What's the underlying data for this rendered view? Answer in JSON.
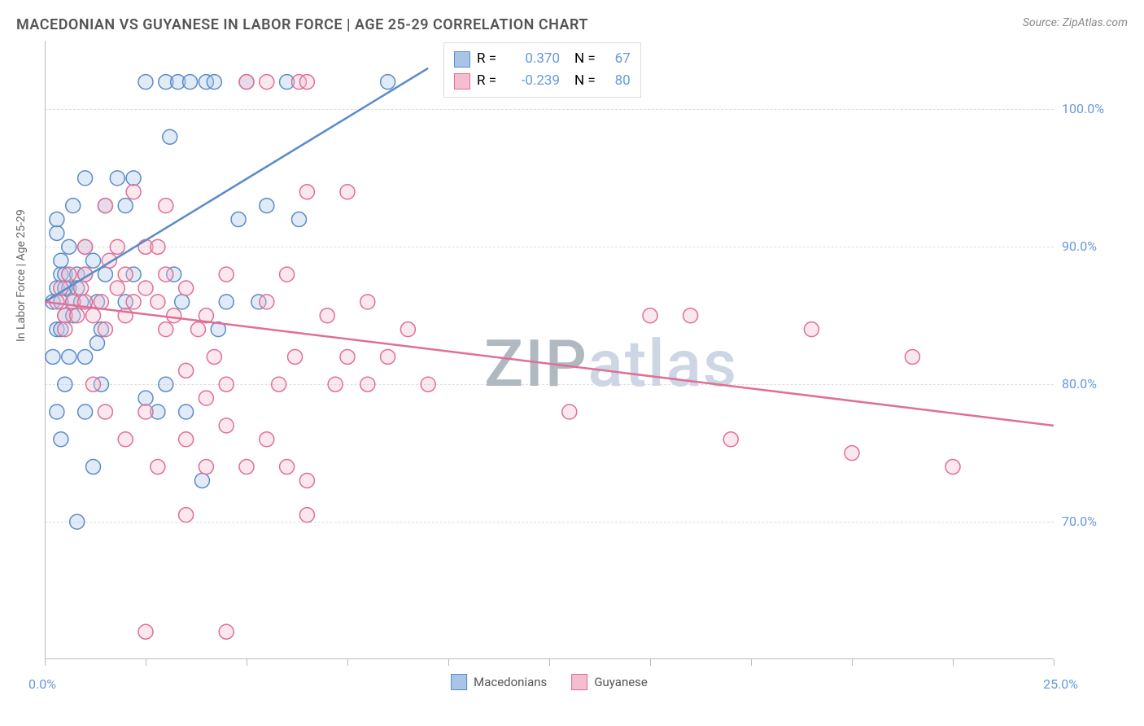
{
  "title": "MACEDONIAN VS GUYANESE IN LABOR FORCE | AGE 25-29 CORRELATION CHART",
  "source": "Source: ZipAtlas.com",
  "ylabel": "In Labor Force | Age 25-29",
  "watermark_text": "ZIPatlas",
  "watermark_color_dark": "#b0b8c0",
  "watermark_color_light": "#cdd6e4",
  "chart": {
    "type": "scatter",
    "plot_bg": "#ffffff",
    "grid_color": "#dddddd",
    "axis_color": "#bbbbbb",
    "xlim": [
      0,
      25
    ],
    "ylim": [
      60,
      105
    ],
    "x_ticks": [
      0,
      2.5,
      5,
      7.5,
      10,
      12.5,
      15,
      17.5,
      20,
      22.5,
      25
    ],
    "x_tick_labels": {
      "0": "0.0%",
      "25": "25.0%"
    },
    "y_gridlines": [
      70,
      80,
      90,
      100
    ],
    "y_right_labels": {
      "70": "70.0%",
      "80": "80.0%",
      "90": "90.0%",
      "100": "100.0%"
    },
    "marker_radius": 9,
    "marker_stroke_width": 1.5,
    "marker_fill_opacity": 0.35,
    "line_width": 2.5,
    "series": [
      {
        "name": "Macedonians",
        "color_stroke": "#5b8cc9",
        "color_fill": "#a8c5e8",
        "r_value": "0.370",
        "n_value": "67",
        "trend_line": {
          "x1": 0,
          "y1": 86,
          "x2": 9.5,
          "y2": 103
        },
        "points": [
          [
            0.2,
            86
          ],
          [
            0.3,
            87
          ],
          [
            0.4,
            88
          ],
          [
            0.5,
            85
          ],
          [
            0.3,
            84
          ],
          [
            0.6,
            87
          ],
          [
            0.4,
            86
          ],
          [
            0.5,
            88
          ],
          [
            0.7,
            86
          ],
          [
            0.4,
            89
          ],
          [
            0.6,
            90
          ],
          [
            0.3,
            91
          ],
          [
            0.8,
            88
          ],
          [
            0.5,
            87
          ],
          [
            0.7,
            85
          ],
          [
            0.9,
            86
          ],
          [
            0.4,
            84
          ],
          [
            1.0,
            88
          ],
          [
            1.2,
            89
          ],
          [
            0.8,
            87
          ],
          [
            1.0,
            90
          ],
          [
            1.3,
            86
          ],
          [
            1.5,
            88
          ],
          [
            0.5,
            80
          ],
          [
            1.0,
            78
          ],
          [
            1.3,
            83
          ],
          [
            1.4,
            84
          ],
          [
            2.0,
            86
          ],
          [
            2.2,
            88
          ],
          [
            2.5,
            102
          ],
          [
            3.0,
            102
          ],
          [
            3.3,
            102
          ],
          [
            3.6,
            102
          ],
          [
            3.1,
            98
          ],
          [
            3.2,
            88
          ],
          [
            3.4,
            86
          ],
          [
            3.0,
            80
          ],
          [
            3.5,
            78
          ],
          [
            4.0,
            102
          ],
          [
            4.2,
            102
          ],
          [
            4.8,
            92
          ],
          [
            4.5,
            86
          ],
          [
            4.3,
            84
          ],
          [
            5.0,
            102
          ],
          [
            5.5,
            93
          ],
          [
            5.3,
            86
          ],
          [
            6.0,
            102
          ],
          [
            6.3,
            92
          ],
          [
            1.5,
            93
          ],
          [
            1.8,
            95
          ],
          [
            2.0,
            93
          ],
          [
            2.2,
            95
          ],
          [
            0.3,
            92
          ],
          [
            0.7,
            93
          ],
          [
            1.0,
            95
          ],
          [
            0.4,
            76
          ],
          [
            0.8,
            70
          ],
          [
            2.8,
            78
          ],
          [
            3.9,
            73
          ],
          [
            1.2,
            74
          ],
          [
            8.5,
            102
          ],
          [
            0.2,
            82
          ],
          [
            0.6,
            82
          ],
          [
            1.0,
            82
          ],
          [
            1.4,
            80
          ],
          [
            2.5,
            79
          ],
          [
            0.3,
            78
          ]
        ]
      },
      {
        "name": "Guyanese",
        "color_stroke": "#e06f95",
        "color_fill": "#f4bdd0",
        "r_value": "-0.239",
        "n_value": "80",
        "trend_line": {
          "x1": 0,
          "y1": 86,
          "x2": 25,
          "y2": 77
        },
        "points": [
          [
            0.3,
            86
          ],
          [
            0.5,
            85
          ],
          [
            0.4,
            87
          ],
          [
            0.6,
            88
          ],
          [
            0.7,
            86
          ],
          [
            0.8,
            85
          ],
          [
            0.5,
            84
          ],
          [
            0.9,
            87
          ],
          [
            1.0,
            86
          ],
          [
            1.2,
            85
          ],
          [
            1.0,
            88
          ],
          [
            1.4,
            86
          ],
          [
            1.5,
            84
          ],
          [
            1.6,
            89
          ],
          [
            1.8,
            87
          ],
          [
            2.0,
            85
          ],
          [
            2.0,
            88
          ],
          [
            2.2,
            86
          ],
          [
            2.5,
            87
          ],
          [
            2.5,
            90
          ],
          [
            2.8,
            86
          ],
          [
            3.0,
            84
          ],
          [
            3.0,
            88
          ],
          [
            3.2,
            85
          ],
          [
            3.5,
            87
          ],
          [
            3.5,
            81
          ],
          [
            3.8,
            84
          ],
          [
            4.0,
            85
          ],
          [
            4.0,
            79
          ],
          [
            4.2,
            82
          ],
          [
            4.5,
            80
          ],
          [
            4.5,
            88
          ],
          [
            5.0,
            102
          ],
          [
            5.5,
            102
          ],
          [
            6.3,
            102
          ],
          [
            6.5,
            102
          ],
          [
            5.5,
            86
          ],
          [
            5.8,
            80
          ],
          [
            6.0,
            88
          ],
          [
            6.2,
            82
          ],
          [
            6.5,
            94
          ],
          [
            7.0,
            85
          ],
          [
            7.2,
            80
          ],
          [
            7.5,
            82
          ],
          [
            8.0,
            86
          ],
          [
            8.0,
            80
          ],
          [
            8.5,
            82
          ],
          [
            9.0,
            84
          ],
          [
            9.5,
            80
          ],
          [
            15.0,
            85
          ],
          [
            16.0,
            85
          ],
          [
            17.0,
            76
          ],
          [
            19.0,
            84
          ],
          [
            20.0,
            75
          ],
          [
            21.5,
            82
          ],
          [
            22.5,
            74
          ],
          [
            13.0,
            78
          ],
          [
            3.0,
            93
          ],
          [
            2.2,
            94
          ],
          [
            1.5,
            93
          ],
          [
            1.8,
            90
          ],
          [
            2.5,
            62
          ],
          [
            3.5,
            70.5
          ],
          [
            4.5,
            62
          ],
          [
            6.5,
            70.5
          ],
          [
            2.0,
            76
          ],
          [
            2.8,
            74
          ],
          [
            1.5,
            78
          ],
          [
            1.2,
            80
          ],
          [
            2.5,
            78
          ],
          [
            3.5,
            76
          ],
          [
            4.0,
            74
          ],
          [
            4.5,
            77
          ],
          [
            5.0,
            74
          ],
          [
            5.5,
            76
          ],
          [
            6.0,
            74
          ],
          [
            6.5,
            73
          ],
          [
            7.5,
            94
          ],
          [
            2.8,
            90
          ],
          [
            1.0,
            90
          ]
        ]
      }
    ],
    "legend_labels": {
      "r_prefix": "R =",
      "n_prefix": "N ="
    },
    "xlabel_color": "#6699dd",
    "yrlabel_color": "#6699dd"
  }
}
